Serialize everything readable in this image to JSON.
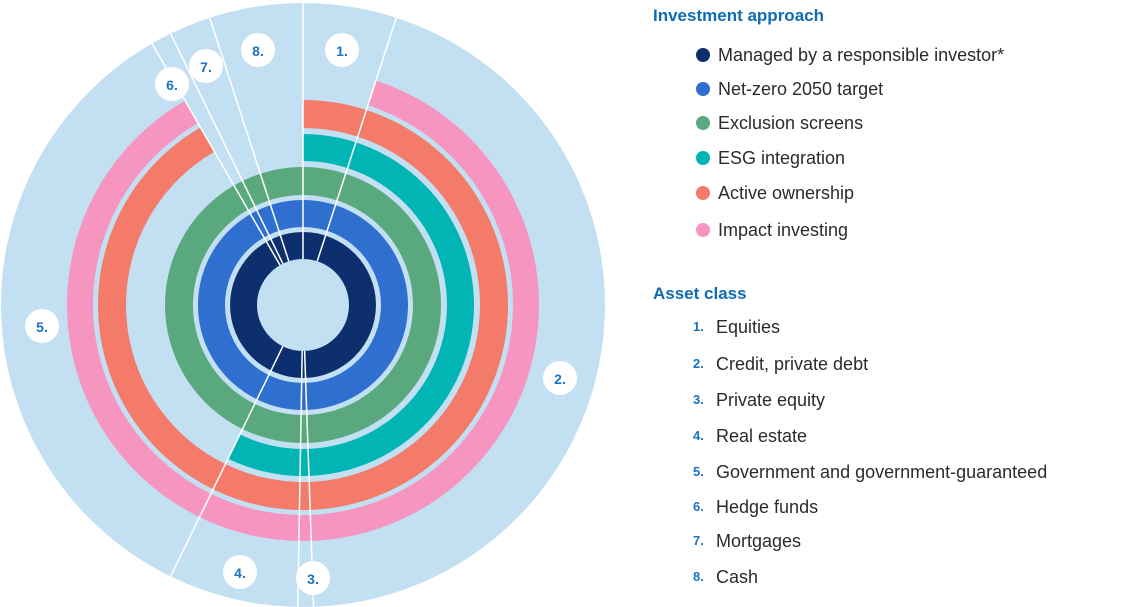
{
  "investment_approach": {
    "title": "Investment approach",
    "items": [
      {
        "label": "Managed by a responsible investor*",
        "color": "#0e2f6e"
      },
      {
        "label": "Net-zero 2050 target",
        "color": "#2e6fcf"
      },
      {
        "label": "Exclusion screens",
        "color": "#5aa97e"
      },
      {
        "label": "ESG integration",
        "color": "#00b5b3"
      },
      {
        "label": "Active ownership",
        "color": "#f47a6a"
      },
      {
        "label": "Impact investing",
        "color": "#f795c1"
      }
    ]
  },
  "asset_class": {
    "title": "Asset class",
    "items": [
      {
        "number": "1.",
        "label": "Equities"
      },
      {
        "number": "2.",
        "label": "Credit, private debt"
      },
      {
        "number": "3.",
        "label": "Private equity"
      },
      {
        "number": "4.",
        "label": "Real estate"
      },
      {
        "number": "5.",
        "label": "Government and government-guaranteed"
      },
      {
        "number": "6.",
        "label": "Hedge funds"
      },
      {
        "number": "7.",
        "label": "Mortgages"
      },
      {
        "number": "8.",
        "label": "Cash"
      }
    ]
  }
}
